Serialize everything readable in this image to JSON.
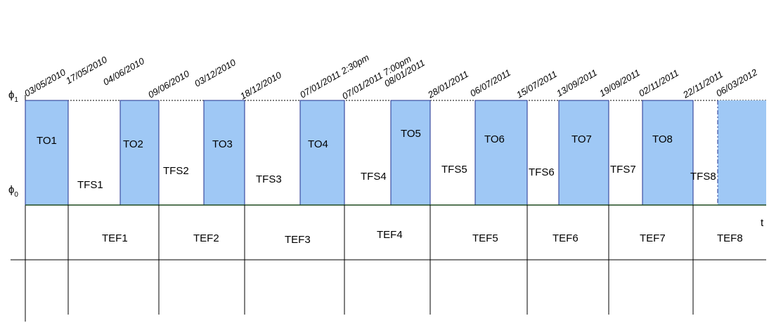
{
  "axis": {
    "top": {
      "symbol": "ϕ",
      "sub": "1"
    },
    "bottom": {
      "symbol": "ϕ",
      "sub": "0"
    },
    "time": "t"
  },
  "dates": [
    "03/05/2010",
    "17/05/2010",
    "04/06/2010",
    "09/06/2010",
    "03/12/2010",
    "18/12/2010",
    "07/01/2011 2:30pm",
    "07/01/2011 7:00pm",
    "08/01/2011",
    "28/01/2011",
    "06/07/2011",
    "15/07/2011",
    "13/09/2011",
    "19/09/2011",
    "02/11/2011",
    "22/11/2011",
    "06/03/2012"
  ],
  "on_periods": [
    "TO1",
    "TO2",
    "TO3",
    "TO4",
    "TO5",
    "TO6",
    "TO7",
    "TO8"
  ],
  "off_periods": [
    "TFS1",
    "TFS2",
    "TFS3",
    "TFS4",
    "TFS5",
    "TFS6",
    "TFS7",
    "TFS8"
  ],
  "failure_intervals": [
    "TEF1",
    "TEF2",
    "TEF3",
    "TEF4",
    "TEF5",
    "TEF6",
    "TEF7",
    "TEF8"
  ]
}
